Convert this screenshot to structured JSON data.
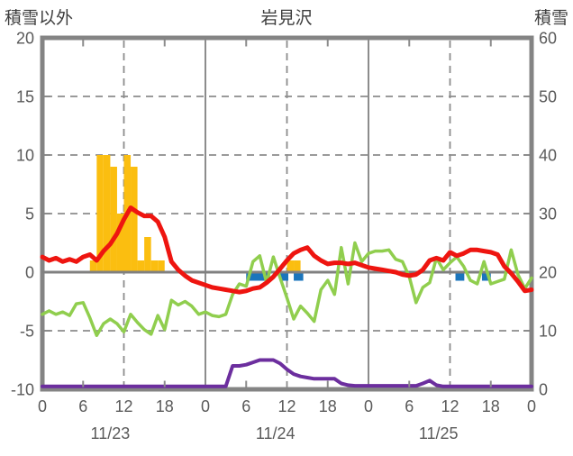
{
  "header": {
    "left_axis_title": "積雪以外",
    "title": "岩見沢",
    "right_axis_title": "積雪"
  },
  "chart_data": {
    "type": "line+bar",
    "title": "岩見沢",
    "x": {
      "unit": "hour",
      "min": 0,
      "max": 72,
      "hour_labels": [
        {
          "hour": 0,
          "label": "0"
        },
        {
          "hour": 6,
          "label": "6"
        },
        {
          "hour": 12,
          "label": "12"
        },
        {
          "hour": 18,
          "label": "18"
        },
        {
          "hour": 24,
          "label": "0"
        },
        {
          "hour": 30,
          "label": "6"
        },
        {
          "hour": 36,
          "label": "12"
        },
        {
          "hour": 42,
          "label": "18"
        },
        {
          "hour": 48,
          "label": "0"
        },
        {
          "hour": 54,
          "label": "6"
        },
        {
          "hour": 60,
          "label": "12"
        },
        {
          "hour": 66,
          "label": "18"
        },
        {
          "hour": 72,
          "label": "0"
        }
      ],
      "date_labels": [
        {
          "center_hour": 10,
          "label": "11/23"
        },
        {
          "center_hour": 34.3,
          "label": "11/24"
        },
        {
          "center_hour": 58.3,
          "label": "11/25"
        }
      ]
    },
    "left_axis": {
      "title": "積雪以外",
      "min": -10,
      "max": 20,
      "ticks": [
        20,
        15,
        10,
        5,
        0,
        -5,
        -10
      ]
    },
    "right_axis": {
      "title": "積雪",
      "min": 0,
      "max": 60,
      "ticks": [
        60,
        50,
        40,
        30,
        20,
        10,
        0
      ]
    },
    "grid": {
      "dashed_horizontal_left_values": [
        15,
        10,
        5,
        -5
      ],
      "solid_horizontal_left_values": [
        0
      ],
      "dashed_vertical_hours": [
        12,
        36,
        60
      ],
      "solid_vertical_hours": [
        24,
        48
      ],
      "minor_tick_hours": [
        6,
        18,
        30,
        42,
        54,
        66
      ],
      "left_tick_values": [
        15,
        10,
        5,
        -5
      ],
      "right_tick_values": [
        50,
        40,
        30,
        10
      ]
    },
    "series": {
      "precipitation_bars": {
        "type": "bar",
        "axis": "left",
        "color": "#FBBE10",
        "points": [
          [
            7,
            1
          ],
          [
            8,
            10
          ],
          [
            9,
            10
          ],
          [
            10,
            9
          ],
          [
            11,
            5
          ],
          [
            12,
            10
          ],
          [
            13,
            9
          ],
          [
            14,
            1
          ],
          [
            15,
            3
          ],
          [
            16,
            1
          ],
          [
            17,
            1
          ],
          [
            36,
            1
          ],
          [
            37,
            1
          ]
        ]
      },
      "temperature_red": {
        "type": "line",
        "axis": "left",
        "color": "#EE1510",
        "stroke_width": 5,
        "values_hourly": [
          1.3,
          1,
          1.2,
          0.9,
          1.1,
          0.9,
          1.3,
          1.5,
          1,
          1.8,
          2.4,
          3.3,
          4.5,
          5.5,
          5.1,
          4.8,
          4.8,
          4.3,
          3,
          0.9,
          0.2,
          -0.3,
          -0.7,
          -0.9,
          -1.1,
          -1.3,
          -1.4,
          -1.5,
          -1.6,
          -1.7,
          -1.6,
          -1.4,
          -1.3,
          -0.9,
          -0.4,
          0.3,
          1,
          1.6,
          1.9,
          2.1,
          1.4,
          1,
          0.7,
          0.8,
          0.8,
          0.7,
          0.8,
          0.6,
          0.4,
          0.3,
          0.2,
          0.1,
          0,
          -0.2,
          -0.3,
          -0.2,
          0.2,
          1,
          1.2,
          1,
          1.7,
          1.4,
          1.6,
          1.9,
          1.9,
          1.8,
          1.7,
          1.5,
          0.5,
          -0.1,
          -0.8,
          -1.6,
          -1.5
        ]
      },
      "green_line": {
        "type": "line",
        "axis": "left",
        "color": "#90CE4E",
        "stroke_width": 3.5,
        "values_hourly": [
          -3.6,
          -3.3,
          -3.6,
          -3.4,
          -3.7,
          -2.7,
          -2.6,
          -3.9,
          -5.4,
          -4.4,
          -4,
          -4.4,
          -5.1,
          -3.6,
          -4.3,
          -4.9,
          -5.3,
          -3.7,
          -4.9,
          -2.4,
          -2.8,
          -2.5,
          -2.9,
          -3.6,
          -3.4,
          -3.7,
          -3.8,
          -3.6,
          -1.9,
          -1,
          -1.2,
          0.9,
          1.4,
          -0.9,
          1.3,
          -0.5,
          -2.2,
          -4,
          -2.9,
          -3.5,
          -4.2,
          -1.5,
          -0.7,
          -1.9,
          2.1,
          -1,
          2.5,
          0.9,
          1.6,
          1.8,
          1.8,
          1.9,
          1.1,
          0.9,
          -0.4,
          -2.6,
          -1.3,
          -0.9,
          1.2,
          0.2,
          0.8,
          1.3,
          0.5,
          -0.7,
          -1,
          0.9,
          -1,
          -0.8,
          -0.6,
          1.9,
          -0.2,
          -1.4,
          -0.5
        ]
      },
      "snow_depth_purple": {
        "type": "line",
        "axis": "right",
        "color": "#6C2E9E",
        "stroke_width": 4,
        "values_hourly": [
          0.5,
          0.5,
          0.5,
          0.5,
          0.5,
          0.5,
          0.5,
          0.5,
          0.5,
          0.5,
          0.5,
          0.5,
          0.5,
          0.5,
          0.5,
          0.5,
          0.5,
          0.5,
          0.5,
          0.5,
          0.5,
          0.5,
          0.5,
          0.5,
          0.5,
          0.5,
          0.5,
          0.5,
          4,
          4,
          4.2,
          4.6,
          5,
          5,
          5,
          4.4,
          3.4,
          2.6,
          2.2,
          2,
          1.8,
          1.8,
          1.8,
          1.8,
          1,
          0.7,
          0.6,
          0.6,
          0.6,
          0.6,
          0.6,
          0.6,
          0.6,
          0.6,
          0.6,
          0.6,
          1,
          1.5,
          0.7,
          0.5,
          0.5,
          0.5,
          0.5,
          0.5,
          0.5,
          0.5,
          0.5,
          0.5,
          0.5,
          0.5,
          0.5,
          0.5,
          0.5
        ]
      },
      "blue_marks": {
        "type": "segment",
        "axis": "left",
        "color": "#1B75BC",
        "segments_hours": [
          [
            30,
            33.5
          ],
          [
            35,
            36.2
          ],
          [
            37,
            38.4
          ],
          [
            60.8,
            62.1
          ],
          [
            64.7,
            66
          ]
        ]
      }
    },
    "frame_color": "#848484",
    "zero_line_color": "#808080",
    "grid_color": "#8c8c8c",
    "text_color": "#5a5a5a",
    "title_color": "#3d3d3d"
  }
}
